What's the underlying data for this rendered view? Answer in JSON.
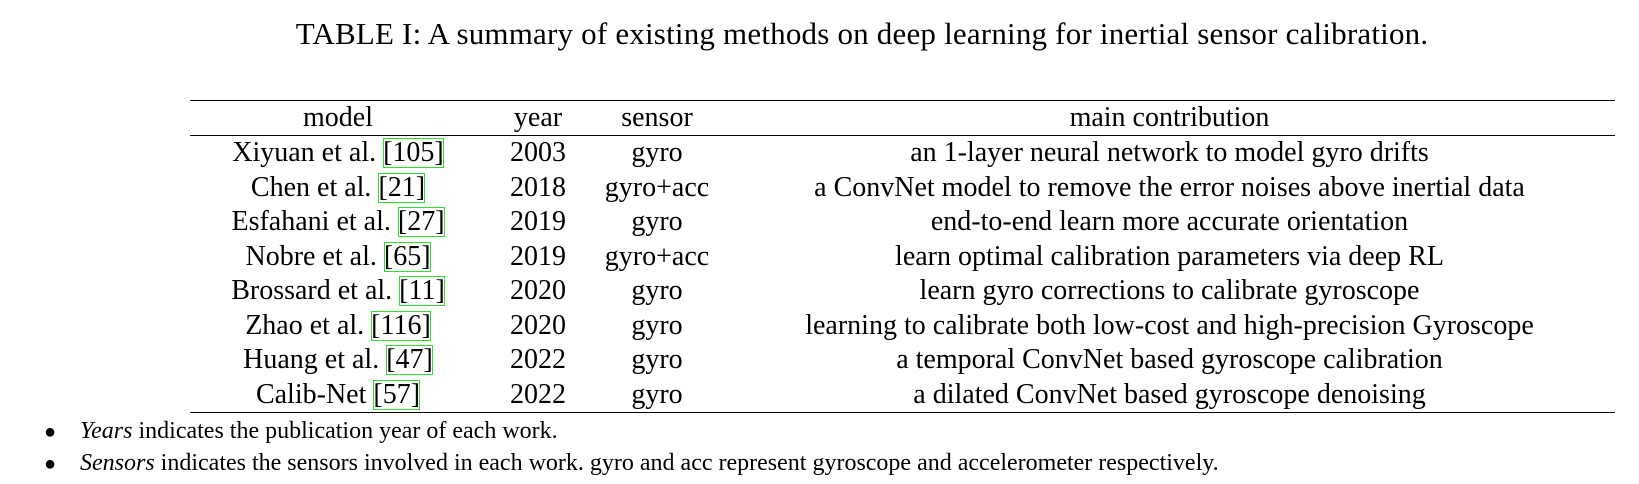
{
  "caption": "TABLE I: A summary of existing methods on deep learning for inertial sensor calibration.",
  "table": {
    "headers": [
      "model",
      "year",
      "sensor",
      "main contribution"
    ],
    "rows": [
      {
        "author": "Xiyuan et al.",
        "ref": "105",
        "year": "2003",
        "sensor": "gyro",
        "contribution": "an 1-layer neural network to model gyro drifts"
      },
      {
        "author": "Chen et al.",
        "ref": "21",
        "year": "2018",
        "sensor": "gyro+acc",
        "contribution": "a ConvNet model to remove the error noises above inertial data"
      },
      {
        "author": "Esfahani et al.",
        "ref": "27",
        "year": "2019",
        "sensor": "gyro",
        "contribution": "end-to-end learn more accurate orientation"
      },
      {
        "author": "Nobre et al.",
        "ref": "65",
        "year": "2019",
        "sensor": "gyro+acc",
        "contribution": "learn optimal calibration parameters via deep RL"
      },
      {
        "author": "Brossard et al.",
        "ref": "11",
        "year": "2020",
        "sensor": "gyro",
        "contribution": "learn gyro corrections to calibrate gyroscope"
      },
      {
        "author": "Zhao et al.",
        "ref": "116",
        "year": "2020",
        "sensor": "gyro",
        "contribution": "learning to calibrate both low-cost and high-precision Gyroscope"
      },
      {
        "author": "Huang et al.",
        "ref": "47",
        "year": "2022",
        "sensor": "gyro",
        "contribution": "a temporal ConvNet based gyroscope calibration"
      },
      {
        "author": "Calib-Net",
        "ref": "57",
        "year": "2022",
        "sensor": "gyro",
        "contribution": "a dilated ConvNet based gyroscope denoising"
      }
    ]
  },
  "notes": [
    {
      "term": "Years",
      "text": "indicates the publication year of each work."
    },
    {
      "term": "Sensors",
      "text": "indicates the sensors involved in each work. gyro and acc represent gyroscope and accelerometer respectively."
    }
  ],
  "colors": {
    "citation_box": "#33dd33",
    "text": "#000000"
  }
}
